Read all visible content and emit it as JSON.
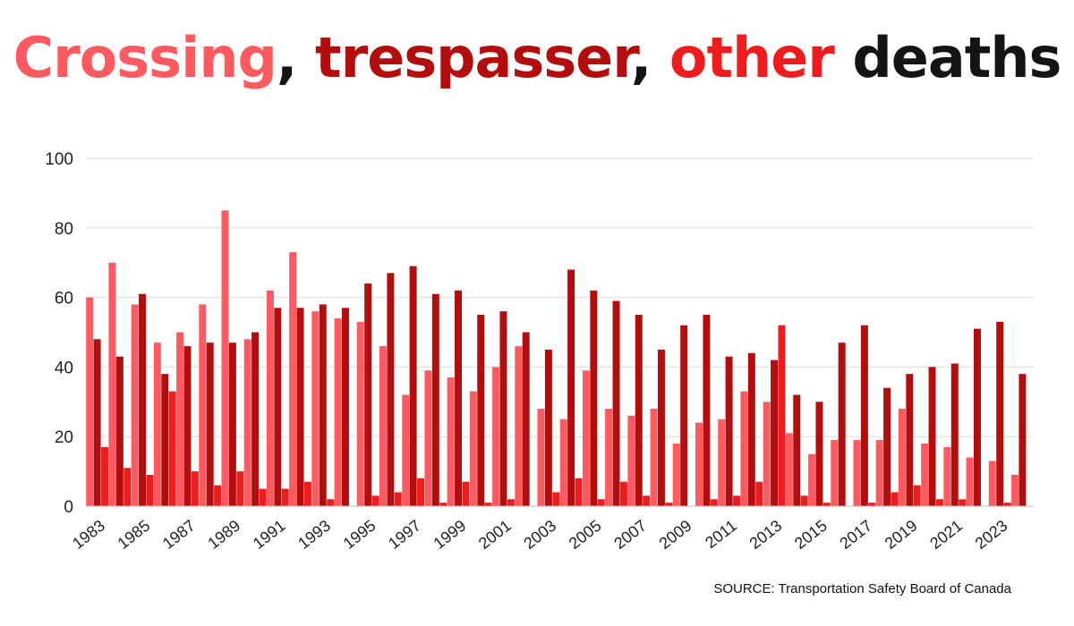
{
  "title": {
    "crossing": "Crossing",
    "sep1": ", ",
    "trespasser": "trespasser",
    "sep2": ", ",
    "other": "other",
    "rest": " deaths"
  },
  "source": "SOURCE: Transportation Safety Board of Canada",
  "chart_data": {
    "type": "bar",
    "title": "Crossing, trespasser, other deaths",
    "xlabel": "",
    "ylabel": "",
    "ylim": [
      0,
      100
    ],
    "yticks": [
      0,
      20,
      40,
      60,
      80,
      100
    ],
    "grid": true,
    "categories": [
      "1983",
      "1984",
      "1985",
      "1986",
      "1987",
      "1988",
      "1989",
      "1990",
      "1991",
      "1992",
      "1993",
      "1994",
      "1995",
      "1996",
      "1997",
      "1998",
      "1999",
      "2000",
      "2001",
      "2002",
      "2003",
      "2004",
      "2005",
      "2006",
      "2007",
      "2008",
      "2009",
      "2010",
      "2011",
      "2012",
      "2013",
      "2014",
      "2015",
      "2016",
      "2017",
      "2018",
      "2019",
      "2020",
      "2021",
      "2022",
      "2023",
      "2024"
    ],
    "xtick_labels": [
      "1983",
      "1985",
      "1987",
      "1989",
      "1991",
      "1993",
      "1995",
      "1997",
      "1999",
      "2001",
      "2003",
      "2005",
      "2007",
      "2009",
      "2011",
      "2013",
      "2015",
      "2017",
      "2019",
      "2021",
      "2023"
    ],
    "series": [
      {
        "name": "Crossing",
        "color": "#ff5a5f",
        "values": [
          60,
          70,
          58,
          47,
          50,
          58,
          85,
          48,
          62,
          73,
          56,
          54,
          53,
          46,
          32,
          39,
          37,
          33,
          40,
          46,
          28,
          25,
          39,
          28,
          26,
          28,
          18,
          24,
          25,
          33,
          30,
          21,
          15,
          19,
          19,
          19,
          28,
          18,
          17,
          14,
          13,
          9
        ]
      },
      {
        "name": "Trespasser",
        "color": "#b30d0d",
        "values": [
          48,
          43,
          61,
          38,
          46,
          47,
          47,
          50,
          57,
          57,
          58,
          57,
          64,
          67,
          69,
          61,
          62,
          55,
          56,
          50,
          45,
          68,
          62,
          59,
          55,
          45,
          52,
          55,
          43,
          44,
          42,
          32,
          30,
          47,
          52,
          34,
          38,
          40,
          41,
          51,
          53,
          38
        ]
      },
      {
        "name": "Other",
        "color": "#ee1c1c",
        "values": [
          17,
          11,
          9,
          33,
          10,
          6,
          10,
          5,
          5,
          7,
          2,
          0,
          3,
          4,
          8,
          1,
          7,
          1,
          2,
          0,
          4,
          8,
          2,
          7,
          3,
          1,
          0,
          2,
          3,
          7,
          52,
          3,
          1,
          0,
          1,
          4,
          6,
          2,
          2,
          0,
          1,
          0
        ]
      }
    ]
  }
}
